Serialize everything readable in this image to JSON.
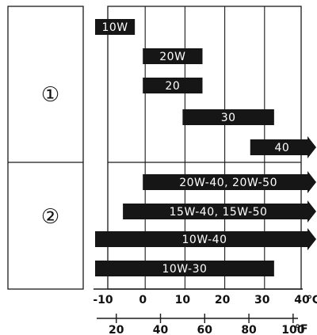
{
  "chart_data": {
    "type": "bar",
    "orientation": "horizontal-range",
    "groups": [
      {
        "label": "①",
        "bars": [
          {
            "label": "10W",
            "start": -12,
            "end": -2,
            "arrow": false
          },
          {
            "label": "20W",
            "start": 0,
            "end": 15,
            "arrow": false
          },
          {
            "label": "20",
            "start": 0,
            "end": 15,
            "arrow": false
          },
          {
            "label": "30",
            "start": 10,
            "end": 33,
            "arrow": false
          },
          {
            "label": "40",
            "start": 27,
            "end": 45,
            "arrow": true
          }
        ]
      },
      {
        "label": "②",
        "bars": [
          {
            "label": "20W-40, 20W-50",
            "start": 0,
            "end": 45,
            "arrow": true
          },
          {
            "label": "15W-40, 15W-50",
            "start": -5,
            "end": 45,
            "arrow": true
          },
          {
            "label": "10W-40",
            "start": -12,
            "end": 45,
            "arrow": true
          },
          {
            "label": "10W-30",
            "start": -12,
            "end": 33,
            "arrow": false
          }
        ]
      }
    ],
    "x_celsius": {
      "min": -10,
      "max": 40,
      "ticks": [
        "-10",
        "0",
        "10",
        "20",
        "30",
        "40"
      ],
      "unit": "℃"
    },
    "x_fahrenheit": {
      "ticks": [
        "20",
        "40",
        "60",
        "80",
        "100"
      ],
      "unit": "°F"
    },
    "grid": true
  }
}
